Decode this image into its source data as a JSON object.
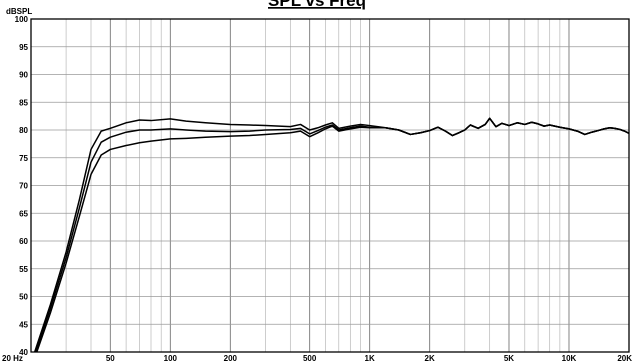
{
  "chart_data": {
    "type": "line",
    "title": "SPL vs Freq",
    "ylabel": "dBSPL",
    "xscale": "log",
    "xlim": [
      20,
      20000
    ],
    "ylim": [
      40,
      100
    ],
    "grid": true,
    "x_tick_values": [
      20,
      50,
      100,
      200,
      500,
      1000,
      2000,
      5000,
      10000,
      20000
    ],
    "x_tick_labels": [
      "20 Hz",
      "50",
      "100",
      "200",
      "500",
      "1K",
      "2K",
      "5K",
      "10K",
      "20K"
    ],
    "y_ticks": [
      40,
      45,
      50,
      55,
      60,
      65,
      70,
      75,
      80,
      85,
      90,
      95,
      100
    ],
    "x": [
      20,
      25,
      30,
      35,
      40,
      45,
      50,
      60,
      70,
      80,
      100,
      120,
      150,
      200,
      250,
      300,
      400,
      450,
      500,
      550,
      600,
      650,
      700,
      800,
      900,
      1000,
      1200,
      1400,
      1600,
      1800,
      2000,
      2200,
      2400,
      2600,
      2800,
      3000,
      3200,
      3500,
      3800,
      4000,
      4300,
      4600,
      5000,
      5500,
      6000,
      6500,
      7000,
      7500,
      8000,
      9000,
      10000,
      11000,
      12000,
      13000,
      14000,
      15000,
      16000,
      17000,
      18000,
      19000,
      20000
    ],
    "series": [
      {
        "values": [
          38.0,
          48.5,
          58.0,
          67.5,
          76.5,
          79.8,
          80.3,
          81.3,
          81.8,
          81.7,
          82.0,
          81.6,
          81.3,
          81.0,
          80.9,
          80.8,
          80.6,
          81.0,
          80.0,
          80.4,
          80.9,
          81.3,
          80.3,
          80.7,
          81.0,
          80.8,
          80.4,
          80.0,
          79.2,
          79.5,
          79.9,
          80.5,
          79.8,
          79.0,
          79.5,
          80.0,
          80.9,
          80.3,
          81.0,
          82.1,
          80.6,
          81.2,
          80.8,
          81.3,
          81.0,
          81.4,
          81.1,
          80.7,
          80.9,
          80.5,
          80.2,
          79.8,
          79.2,
          79.6,
          79.9,
          80.2,
          80.4,
          80.3,
          80.1,
          79.8,
          79.4
        ]
      },
      {
        "values": [
          37.5,
          47.8,
          57.0,
          66.0,
          74.2,
          77.8,
          78.7,
          79.6,
          80.0,
          80.0,
          80.2,
          80.0,
          79.8,
          79.7,
          79.8,
          80.0,
          80.1,
          80.3,
          79.3,
          79.9,
          80.5,
          80.9,
          80.0,
          80.4,
          80.7,
          80.5,
          80.4,
          80.0,
          79.2,
          79.5,
          79.9,
          80.5,
          79.8,
          79.0,
          79.5,
          80.0,
          80.9,
          80.3,
          81.0,
          82.1,
          80.6,
          81.2,
          80.8,
          81.3,
          81.0,
          81.4,
          81.1,
          80.7,
          80.9,
          80.5,
          80.2,
          79.8,
          79.2,
          79.6,
          79.9,
          80.2,
          80.4,
          80.3,
          80.1,
          79.8,
          79.4
        ]
      },
      {
        "values": [
          37.0,
          47.0,
          56.0,
          64.5,
          72.0,
          75.5,
          76.5,
          77.2,
          77.7,
          78.0,
          78.4,
          78.5,
          78.7,
          78.9,
          79.0,
          79.2,
          79.5,
          79.8,
          78.8,
          79.5,
          80.2,
          80.7,
          79.8,
          80.2,
          80.5,
          80.4,
          80.4,
          80.0,
          79.2,
          79.5,
          79.9,
          80.5,
          79.8,
          79.0,
          79.5,
          80.0,
          80.9,
          80.3,
          81.0,
          82.1,
          80.6,
          81.2,
          80.8,
          81.3,
          81.0,
          81.4,
          81.1,
          80.7,
          80.9,
          80.5,
          80.2,
          79.8,
          79.2,
          79.6,
          79.9,
          80.2,
          80.4,
          80.3,
          80.1,
          79.8,
          79.4
        ]
      }
    ]
  }
}
